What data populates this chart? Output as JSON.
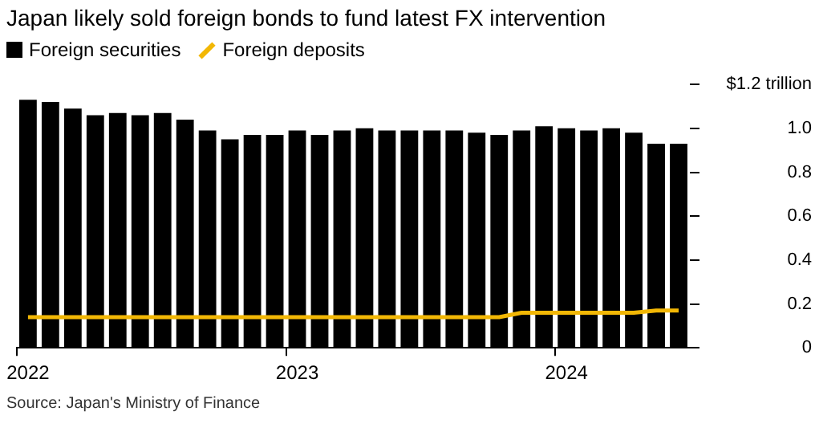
{
  "chart_data": {
    "type": "bar",
    "title": "Japan likely sold foreign bonds to fund latest FX intervention",
    "categories": [
      "2022",
      null,
      null,
      null,
      null,
      null,
      null,
      null,
      null,
      null,
      null,
      null,
      "2023",
      null,
      null,
      null,
      null,
      null,
      null,
      null,
      null,
      null,
      null,
      null,
      "2024",
      null,
      null,
      null,
      null,
      null
    ],
    "series": [
      {
        "name": "Foreign securities",
        "color": "#000000",
        "values": [
          1.13,
          1.12,
          1.09,
          1.06,
          1.07,
          1.06,
          1.07,
          1.04,
          0.99,
          0.95,
          0.97,
          0.97,
          0.99,
          0.97,
          0.99,
          1.0,
          0.99,
          0.99,
          0.99,
          0.99,
          0.98,
          0.97,
          0.99,
          1.01,
          1.0,
          0.99,
          1.0,
          0.98,
          0.93,
          0.93
        ]
      },
      {
        "name": "Foreign deposits",
        "type": "line",
        "color": "#f2b705",
        "values": [
          0.14,
          0.14,
          0.14,
          0.14,
          0.14,
          0.14,
          0.14,
          0.14,
          0.14,
          0.14,
          0.14,
          0.14,
          0.14,
          0.14,
          0.14,
          0.14,
          0.14,
          0.14,
          0.14,
          0.14,
          0.14,
          0.14,
          0.16,
          0.16,
          0.16,
          0.16,
          0.16,
          0.16,
          0.17,
          0.17
        ]
      }
    ],
    "ylim": [
      0,
      1.2
    ],
    "yticks": [
      0,
      0.2,
      0.4,
      0.6,
      0.8,
      {
        "value": 1.0,
        "label": "1.0"
      },
      {
        "value": 1.2,
        "label": "$1.2 trillion"
      }
    ],
    "legend": "top left",
    "grid": false,
    "annotations": [
      "Source: Japan's Ministry of Finance"
    ]
  }
}
